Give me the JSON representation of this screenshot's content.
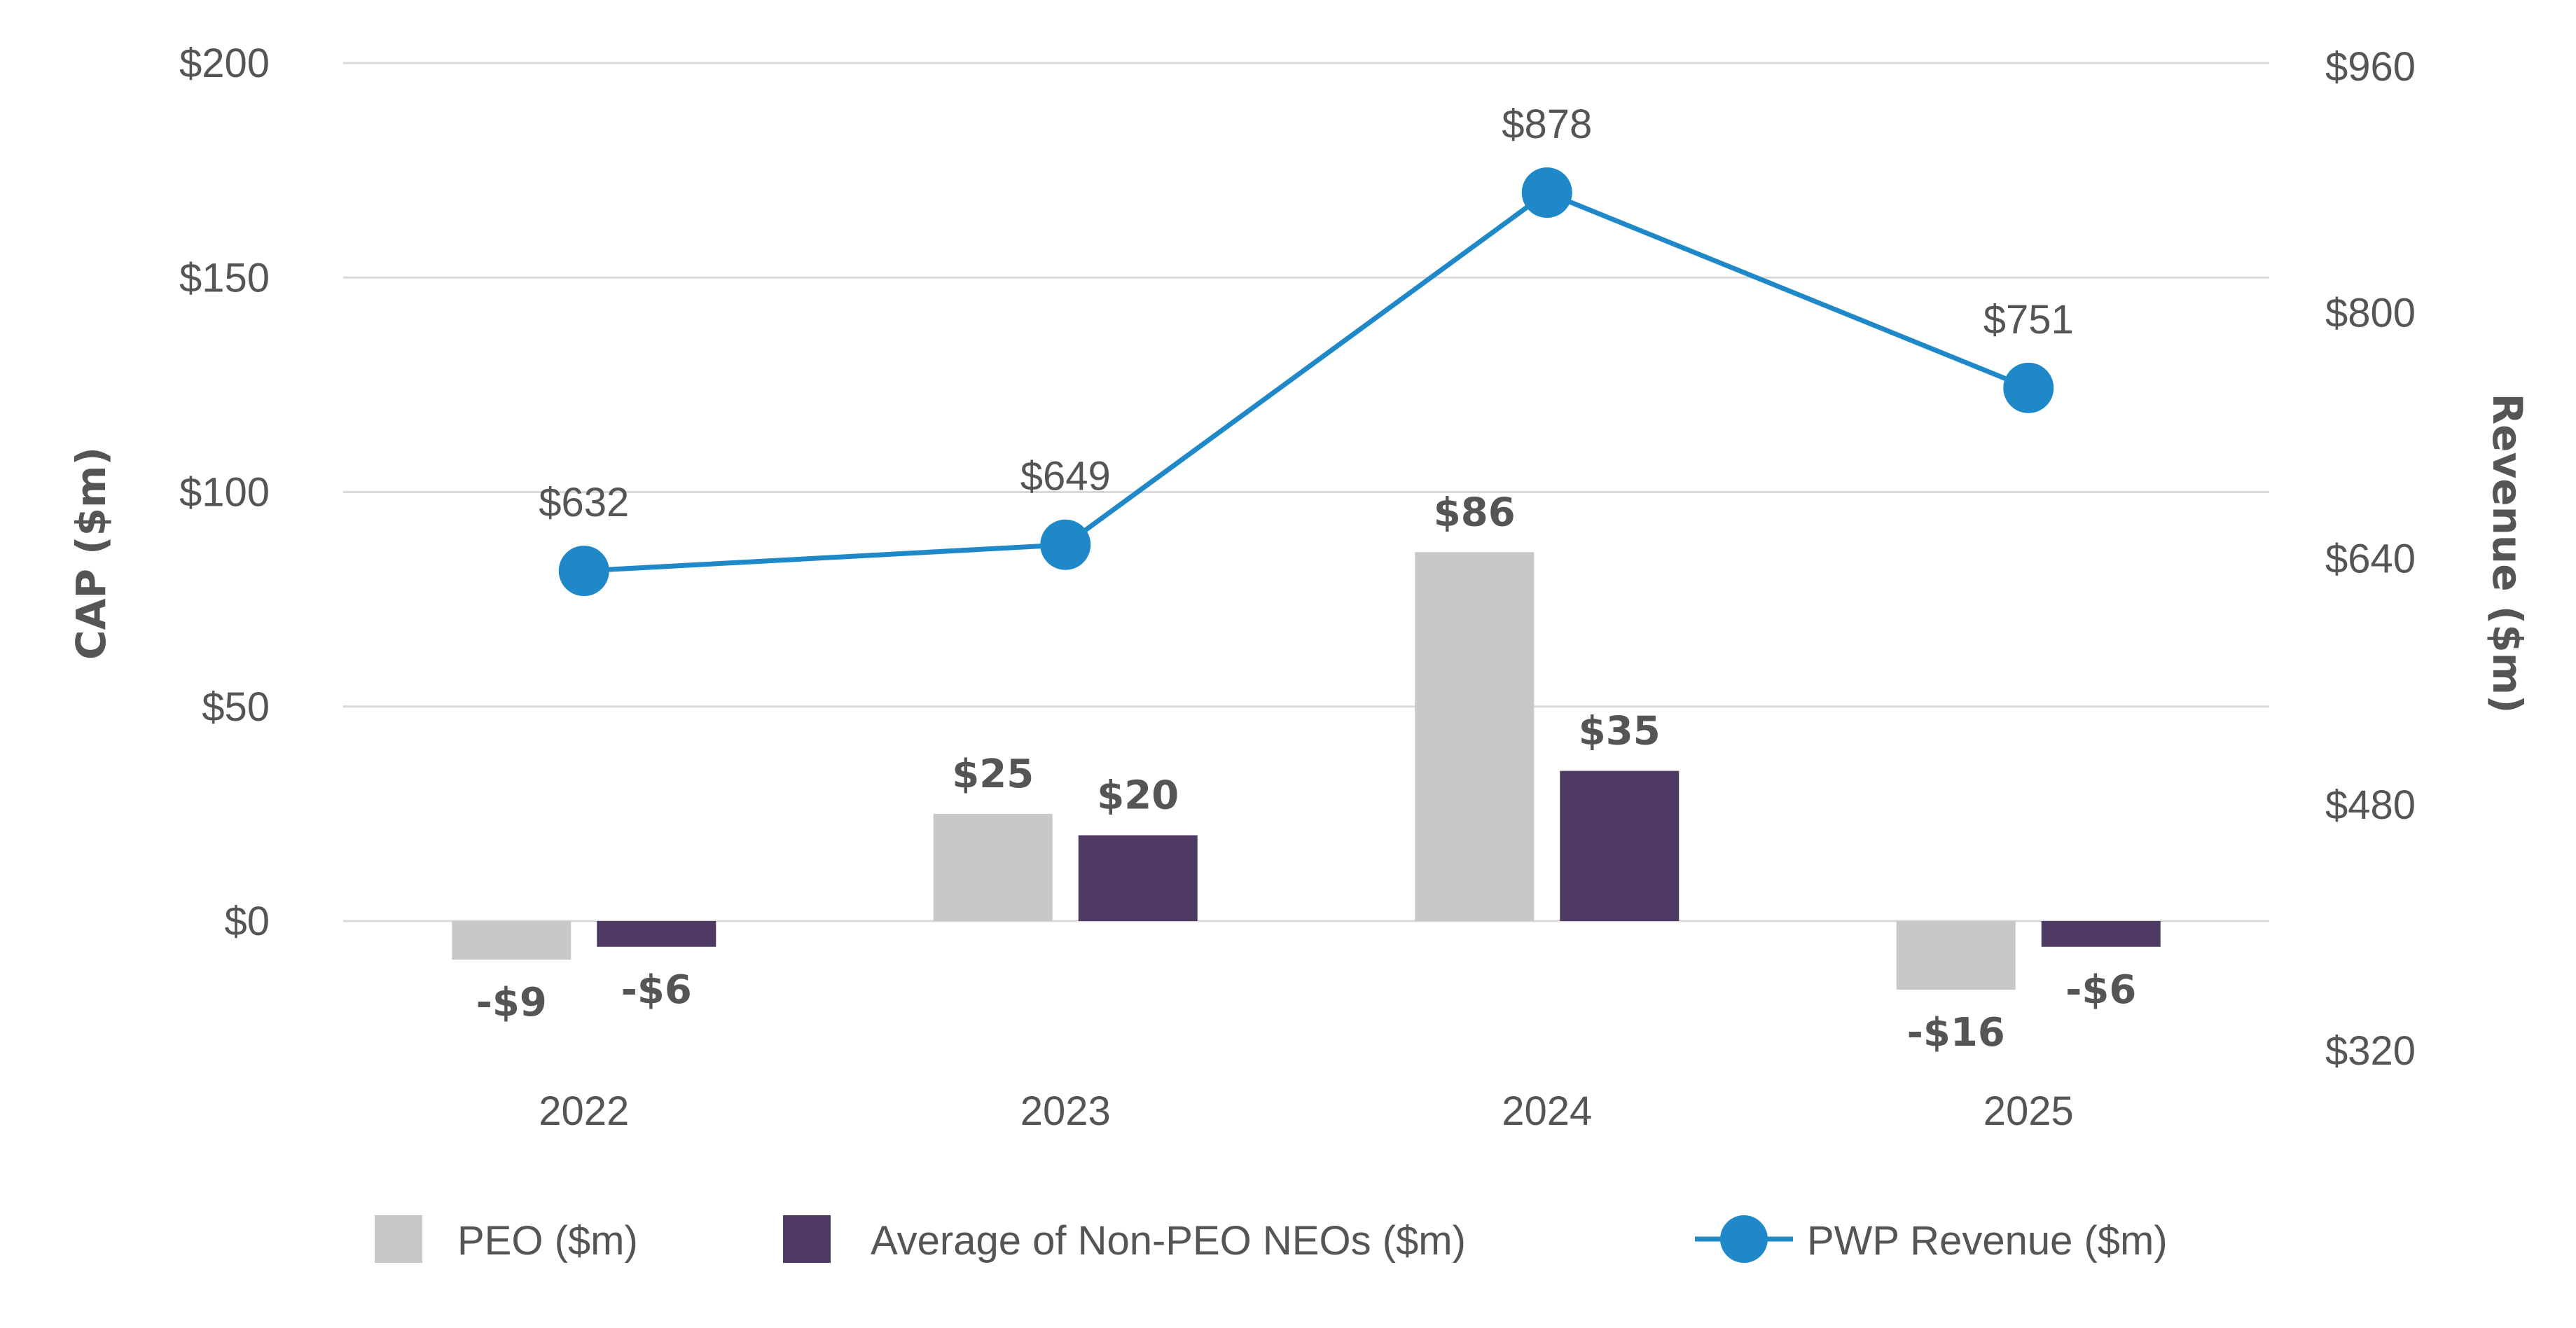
{
  "chart_data": {
    "type": "bar",
    "categories": [
      "2022",
      "2023",
      "2024",
      "2025"
    ],
    "series": [
      {
        "name": "PEO ($m)",
        "kind": "bar",
        "axis": "left",
        "color": "#c8c8c8",
        "values": [
          -9,
          25,
          86,
          -16
        ],
        "labels": [
          "-$9",
          "$25",
          "$86",
          "-$16"
        ]
      },
      {
        "name": "Average of Non-PEO NEOs ($m)",
        "kind": "bar",
        "axis": "left",
        "color": "#4f3a63",
        "values": [
          -6,
          20,
          35,
          -6
        ],
        "labels": [
          "-$6",
          "$20",
          "$35",
          "-$6"
        ]
      },
      {
        "name": "PWP Revenue ($m)",
        "kind": "line",
        "axis": "right",
        "color": "#1f88c9",
        "values": [
          632,
          649,
          878,
          751
        ],
        "labels": [
          "$632",
          "$649",
          "$878",
          "$751"
        ]
      }
    ],
    "ylabel": "CAP ($m)",
    "y2label": "Revenue ($m)",
    "ylim": [
      -30,
      200
    ],
    "y2lim": [
      320,
      960
    ],
    "yticks": [
      0,
      50,
      100,
      150,
      200
    ],
    "ytick_labels": [
      "$0",
      "$50",
      "$100",
      "$150",
      "$200"
    ],
    "y2ticks": [
      320,
      480,
      640,
      800,
      960
    ],
    "y2tick_labels": [
      "$320",
      "$480",
      "$640",
      "$800",
      "$960"
    ],
    "grid": true,
    "legend": "bottom"
  }
}
